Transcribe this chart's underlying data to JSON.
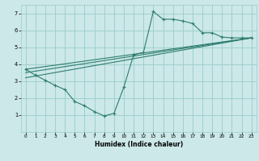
{
  "xlabel": "Humidex (Indice chaleur)",
  "bg_color": "#cce8e8",
  "grid_color": "#99cccc",
  "line_color": "#2e7d6e",
  "xlim": [
    -0.5,
    23.5
  ],
  "ylim": [
    0,
    7.5
  ],
  "xticks": [
    0,
    1,
    2,
    3,
    4,
    5,
    6,
    7,
    8,
    9,
    10,
    11,
    12,
    13,
    14,
    15,
    16,
    17,
    18,
    19,
    20,
    21,
    22,
    23
  ],
  "yticks": [
    1,
    2,
    3,
    4,
    5,
    6,
    7
  ],
  "curve1_x": [
    0,
    1,
    2,
    3,
    4,
    5,
    6,
    7,
    8,
    9,
    10,
    11,
    12,
    13,
    14,
    15,
    16,
    17,
    18,
    19,
    20,
    21,
    22,
    23
  ],
  "curve1_y": [
    3.7,
    3.35,
    3.05,
    2.75,
    2.5,
    1.8,
    1.55,
    1.2,
    0.95,
    1.1,
    2.65,
    4.55,
    4.7,
    7.1,
    6.65,
    6.65,
    6.55,
    6.4,
    5.85,
    5.85,
    5.6,
    5.55,
    5.55,
    5.55
  ],
  "line1_y_start": 3.7,
  "line1_y_end": 5.55,
  "line2_y_start": 3.5,
  "line2_y_end": 5.55,
  "line3_y_start": 3.2,
  "line3_y_end": 5.55,
  "x_start": 0,
  "x_end": 23
}
